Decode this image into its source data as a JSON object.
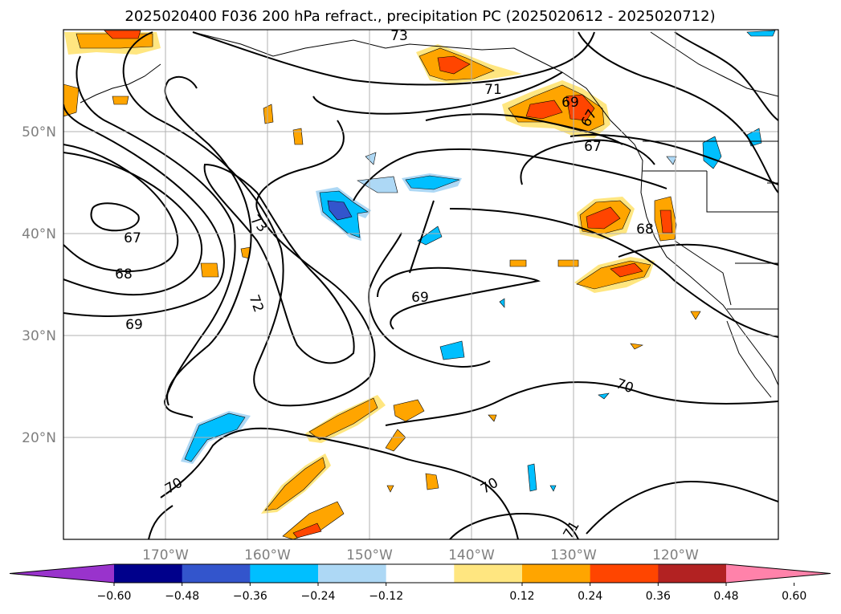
{
  "figure": {
    "title": "2025020400 F036 200 hPa refract., precipitation PC (2025020612 - 2025020712)"
  },
  "map": {
    "lon_ticks": [
      "170°W",
      "160°W",
      "150°W",
      "140°W",
      "130°W",
      "120°W"
    ],
    "lat_ticks": [
      "50°N",
      "40°N",
      "30°N",
      "20°N"
    ],
    "contour_labels": [
      "73",
      "71",
      "69",
      "67",
      "67",
      "73",
      "72",
      "67",
      "68",
      "69",
      "68",
      "69",
      "70",
      "70",
      "70",
      "71"
    ]
  },
  "colorbar": {
    "ticks": [
      "−0.60",
      "−0.48",
      "−0.36",
      "−0.24",
      "−0.12",
      "0.12",
      "0.24",
      "0.36",
      "0.48",
      "0.60"
    ],
    "colors": [
      "#9933cc",
      "#00008b",
      "#3355cc",
      "#00bfff",
      "#add8f5",
      "#ffffff",
      "#ffe680",
      "#ffa500",
      "#ff4500",
      "#b22222",
      "#ff82aa"
    ]
  }
}
